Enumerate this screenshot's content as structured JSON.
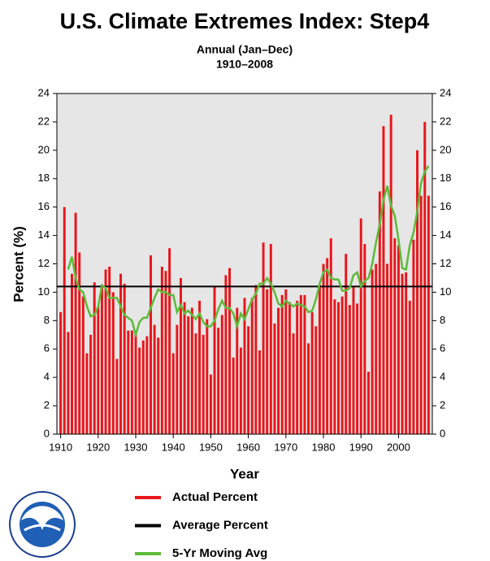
{
  "chart_data": {
    "type": "bar",
    "title": "U.S. Climate Extremes Index: Step4",
    "subtitle": "Annual (Jan–Dec)",
    "period": "1910–2008",
    "x_label": "Year",
    "y_label": "Percent (%)",
    "x": [
      1910,
      1911,
      1912,
      1913,
      1914,
      1915,
      1916,
      1917,
      1918,
      1919,
      1920,
      1921,
      1922,
      1923,
      1924,
      1925,
      1926,
      1927,
      1928,
      1929,
      1930,
      1931,
      1932,
      1933,
      1934,
      1935,
      1936,
      1937,
      1938,
      1939,
      1940,
      1941,
      1942,
      1943,
      1944,
      1945,
      1946,
      1947,
      1948,
      1949,
      1950,
      1951,
      1952,
      1953,
      1954,
      1955,
      1956,
      1957,
      1958,
      1959,
      1960,
      1961,
      1962,
      1963,
      1964,
      1965,
      1966,
      1967,
      1968,
      1969,
      1970,
      1971,
      1972,
      1973,
      1974,
      1975,
      1976,
      1977,
      1978,
      1979,
      1980,
      1981,
      1982,
      1983,
      1984,
      1985,
      1986,
      1987,
      1988,
      1989,
      1990,
      1991,
      1992,
      1993,
      1994,
      1995,
      1996,
      1997,
      1998,
      1999,
      2000,
      2001,
      2002,
      2003,
      2004,
      2005,
      2006,
      2007,
      2008
    ],
    "series": [
      {
        "name": "Actual Percent",
        "color": "#e8161b",
        "values": [
          8.6,
          16.0,
          7.2,
          11.3,
          15.6,
          12.8,
          9.7,
          5.7,
          7.0,
          10.7,
          9.0,
          10.5,
          11.6,
          11.8,
          10.0,
          5.3,
          11.3,
          10.6,
          7.3,
          7.3,
          7.2,
          6.1,
          6.6,
          6.9,
          12.6,
          7.7,
          6.8,
          11.8,
          11.5,
          13.1,
          5.7,
          7.7,
          11.0,
          9.3,
          8.3,
          8.9,
          7.1,
          9.4,
          7.0,
          8.1,
          4.2,
          10.4,
          7.5,
          8.4,
          11.2,
          11.7,
          5.4,
          8.9,
          6.1,
          9.6,
          7.6,
          9.6,
          10.5,
          5.9,
          13.5,
          10.2,
          13.4,
          7.8,
          8.9,
          9.8,
          10.2,
          9.3,
          7.1,
          9.4,
          9.8,
          9.8,
          6.4,
          8.6,
          7.6,
          10.5,
          12.0,
          12.4,
          13.8,
          9.5,
          9.3,
          9.7,
          12.7,
          9.1,
          10.4,
          9.2,
          15.2,
          13.4,
          4.4,
          11.6,
          12.0,
          17.1,
          21.7,
          12.0,
          22.5,
          13.8,
          13.3,
          11.3,
          11.4,
          9.4,
          13.7,
          20.0,
          16.8,
          22.0,
          16.8
        ]
      },
      {
        "name": "Average Percent",
        "color": "#000000",
        "value": 10.4
      },
      {
        "name": "5-Yr Moving Avg",
        "color": "#5dbb3a",
        "values": [
          null,
          null,
          11.6,
          12.5,
          11.0,
          10.2,
          10.0,
          9.0,
          8.3,
          8.4,
          9.0,
          10.5,
          10.3,
          9.6,
          9.6,
          9.6,
          9.0,
          8.4,
          8.2,
          8.0,
          7.0,
          7.9,
          8.2,
          8.2,
          8.9,
          9.6,
          10.2,
          10.0,
          10.0,
          9.8,
          9.8,
          8.6,
          9.1,
          8.5,
          8.7,
          8.4,
          8.1,
          8.5,
          7.9,
          7.6,
          7.6,
          8.0,
          8.8,
          9.4,
          8.9,
          8.9,
          8.5,
          7.6,
          8.5,
          8.1,
          8.8,
          9.5,
          9.9,
          10.6,
          10.6,
          11.0,
          10.6,
          10.0,
          9.2,
          9.0,
          9.4,
          9.2,
          9.0,
          9.2,
          9.1,
          9.0,
          8.6,
          8.7,
          9.5,
          10.6,
          11.4,
          11.6,
          11.0,
          10.9,
          10.9,
          10.1,
          10.1,
          10.3,
          11.2,
          11.4,
          10.4,
          10.8,
          11.0,
          12.0,
          13.5,
          14.8,
          16.5,
          17.5,
          16.1,
          15.4,
          13.7,
          11.7,
          11.6,
          13.3,
          14.2,
          15.7,
          17.7,
          18.5,
          18.9
        ]
      }
    ],
    "xlim": [
      1909,
      2009
    ],
    "xticks": [
      1910,
      1920,
      1930,
      1940,
      1950,
      1960,
      1970,
      1980,
      1990,
      2000
    ],
    "ylim": [
      0,
      24
    ],
    "yticks": [
      0,
      2,
      4,
      6,
      8,
      10,
      12,
      14,
      16,
      18,
      20,
      22,
      24
    ],
    "plot_background": "#e6e6e6"
  }
}
